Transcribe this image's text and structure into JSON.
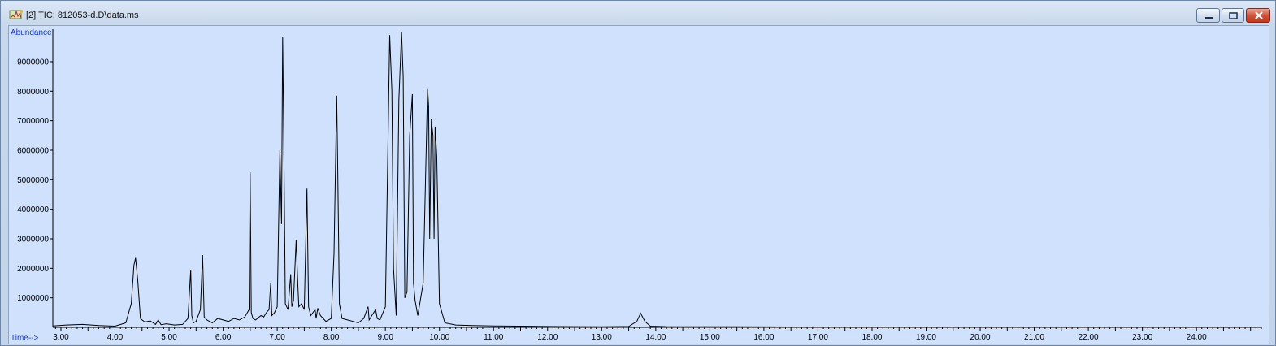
{
  "window": {
    "title": "[2] TIC: 812053-d.D\\data.ms",
    "icon": "chromatogram-app-icon",
    "buttons": [
      "minimize",
      "maximize",
      "close"
    ]
  },
  "chart_data": {
    "type": "line",
    "ylabel": "Abundance",
    "xlabel": "Time-->",
    "xlim": [
      2.85,
      25.2
    ],
    "ylim": [
      0,
      10100000
    ],
    "x_ticks": [
      "3.00",
      "4.00",
      "5.00",
      "6.00",
      "7.00",
      "8.00",
      "9.00",
      "10.00",
      "11.00",
      "12.00",
      "13.00",
      "14.00",
      "15.00",
      "16.00",
      "17.00",
      "18.00",
      "19.00",
      "20.00",
      "21.00",
      "22.00",
      "23.00",
      "24.00"
    ],
    "y_ticks": [
      "1000000",
      "2000000",
      "3000000",
      "4000000",
      "5000000",
      "6000000",
      "7000000",
      "8000000",
      "9000000"
    ],
    "grid": false,
    "line_color": "#000000",
    "background": "#cfe1fd",
    "series": [
      {
        "x": [
          2.85,
          3.1,
          3.4,
          3.7,
          4.0,
          4.2,
          4.3,
          4.35,
          4.38,
          4.42,
          4.47,
          4.55,
          4.65,
          4.75,
          4.8,
          4.85,
          4.95,
          5.1,
          5.25,
          5.35,
          5.4,
          5.42,
          5.45,
          5.5,
          5.58,
          5.62,
          5.65,
          5.7,
          5.8,
          5.9,
          6.0,
          6.1,
          6.2,
          6.3,
          6.4,
          6.48,
          6.5,
          6.52,
          6.55,
          6.6,
          6.7,
          6.75,
          6.8,
          6.85,
          6.88,
          6.9,
          6.95,
          7.0,
          7.05,
          7.08,
          7.1,
          7.12,
          7.15,
          7.2,
          7.25,
          7.27,
          7.3,
          7.35,
          7.38,
          7.4,
          7.45,
          7.5,
          7.55,
          7.58,
          7.62,
          7.7,
          7.72,
          7.75,
          7.8,
          7.85,
          7.9,
          8.0,
          8.05,
          8.1,
          8.12,
          8.15,
          8.2,
          8.3,
          8.4,
          8.5,
          8.6,
          8.68,
          8.7,
          8.75,
          8.82,
          8.85,
          8.9,
          9.0,
          9.08,
          9.12,
          9.15,
          9.2,
          9.25,
          9.3,
          9.33,
          9.36,
          9.4,
          9.45,
          9.5,
          9.52,
          9.55,
          9.6,
          9.7,
          9.78,
          9.8,
          9.82,
          9.85,
          9.88,
          9.9,
          9.92,
          9.95,
          10.0,
          10.1,
          10.3,
          10.6,
          11.0,
          11.5,
          12.0,
          12.5,
          13.0,
          13.5,
          13.65,
          13.72,
          13.8,
          13.9,
          14.2,
          14.8,
          15.5,
          16.5,
          18.0,
          20.0,
          22.0,
          24.0,
          25.2
        ],
        "y": [
          50000,
          80000,
          100000,
          60000,
          40000,
          150000,
          800000,
          2100000,
          2350000,
          1600000,
          300000,
          180000,
          220000,
          100000,
          250000,
          90000,
          120000,
          80000,
          100000,
          300000,
          1950000,
          400000,
          150000,
          200000,
          600000,
          2450000,
          350000,
          250000,
          150000,
          300000,
          250000,
          200000,
          300000,
          250000,
          350000,
          600000,
          5250000,
          500000,
          300000,
          250000,
          400000,
          350000,
          500000,
          600000,
          1500000,
          400000,
          500000,
          700000,
          6000000,
          3500000,
          9850000,
          6600000,
          800000,
          600000,
          1800000,
          700000,
          900000,
          2950000,
          1500000,
          700000,
          800000,
          600000,
          4700000,
          700000,
          400000,
          600000,
          300000,
          650000,
          400000,
          300000,
          200000,
          300000,
          2500000,
          7850000,
          5300000,
          800000,
          300000,
          250000,
          200000,
          150000,
          300000,
          700000,
          250000,
          400000,
          600000,
          300000,
          250000,
          700000,
          9900000,
          8000000,
          2000000,
          400000,
          7700000,
          10000000,
          8500000,
          1000000,
          1200000,
          6500000,
          7900000,
          1500000,
          900000,
          400000,
          1500000,
          8100000,
          7500000,
          3000000,
          7050000,
          6500000,
          3000000,
          6800000,
          5800000,
          800000,
          150000,
          80000,
          60000,
          50000,
          40000,
          30000,
          25000,
          20000,
          30000,
          200000,
          480000,
          200000,
          40000,
          25000,
          20000,
          20000,
          15000,
          15000,
          12000,
          12000,
          12000,
          12000
        ]
      }
    ]
  }
}
